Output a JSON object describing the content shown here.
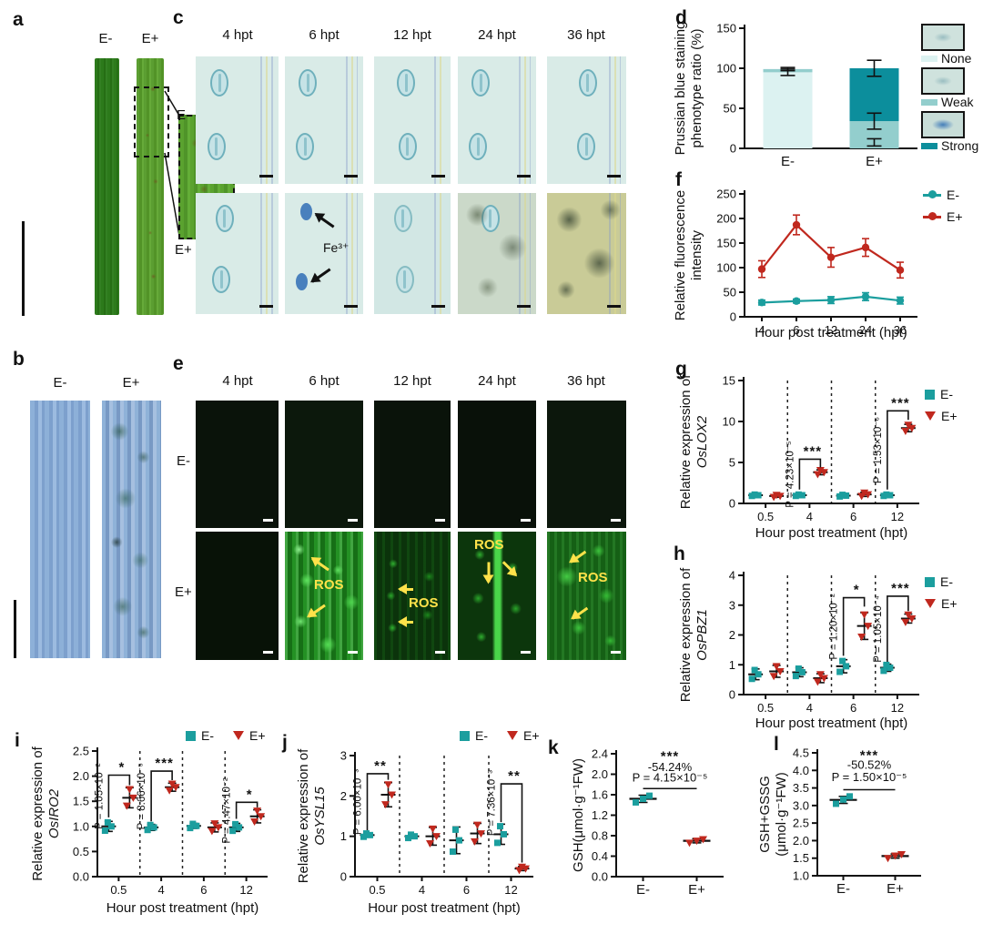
{
  "colors": {
    "teal": "#1b9e9e",
    "red": "#c0281e",
    "none_fill": "#dcf2f1",
    "weak_fill": "#93cecd",
    "strong_fill": "#0c8e9c",
    "ros_yellow": "#ffe24a"
  },
  "panels": {
    "a": {
      "letter": "a",
      "cols": [
        "E-",
        "E+"
      ]
    },
    "b": {
      "letter": "b",
      "cols": [
        "E-",
        "E+"
      ]
    },
    "c": {
      "letter": "c",
      "cols": [
        "4 hpt",
        "6 hpt",
        "12 hpt",
        "24 hpt",
        "36 hpt"
      ],
      "rows": [
        "E-",
        "E+"
      ],
      "fe_label": "Fe³⁺"
    },
    "d": {
      "letter": "d"
    },
    "e": {
      "letter": "e",
      "cols": [
        "4 hpt",
        "6 hpt",
        "12 hpt",
        "24 hpt",
        "36 hpt"
      ],
      "rows": [
        "E-",
        "E+"
      ],
      "ros_label": "ROS"
    },
    "f": {
      "letter": "f"
    },
    "g": {
      "letter": "g"
    },
    "h": {
      "letter": "h"
    },
    "i": {
      "letter": "i"
    },
    "j": {
      "letter": "j"
    },
    "k": {
      "letter": "k"
    },
    "l": {
      "letter": "l"
    }
  },
  "chart_data": [
    {
      "id": "d",
      "type": "bar-stacked",
      "ylabel": [
        "Prussian blue staining",
        "phenotype ratio (%)"
      ],
      "categories": [
        "E-",
        "E+"
      ],
      "ylim": [
        0,
        150
      ],
      "yticks": [
        "0",
        "50",
        "100",
        "150"
      ],
      "series": [
        {
          "name": "None",
          "color": "#dcf2f1",
          "values": [
            95,
            0
          ]
        },
        {
          "name": "Weak",
          "color": "#93cecd",
          "values": [
            4,
            34
          ]
        },
        {
          "name": "Strong",
          "color": "#0c8e9c",
          "values": [
            0,
            66
          ]
        }
      ],
      "error_bars": [
        {
          "cat": 0,
          "lo": 91,
          "hi": 99
        },
        {
          "cat": 0,
          "lo": 97,
          "hi": 101
        },
        {
          "cat": 1,
          "lo": 3,
          "hi": 12
        },
        {
          "cat": 1,
          "lo": 24,
          "hi": 44
        },
        {
          "cat": 1,
          "lo": 90,
          "hi": 110
        }
      ]
    },
    {
      "id": "f",
      "type": "line",
      "ylabel": [
        "Relative fluorescence",
        "intensity"
      ],
      "xlabel": "Hour post treatment (hpt)",
      "categories": [
        "4",
        "6",
        "12",
        "24",
        "36"
      ],
      "ylim": [
        0,
        250
      ],
      "yticks": [
        "0",
        "50",
        "100",
        "150",
        "200",
        "250"
      ],
      "series": [
        {
          "name": "E-",
          "color": "#1b9e9e",
          "values": [
            29,
            32,
            34,
            41,
            33
          ],
          "errors": [
            5,
            4,
            7,
            8,
            7
          ]
        },
        {
          "name": "E+",
          "color": "#c0281e",
          "values": [
            97,
            187,
            121,
            141,
            95
          ],
          "errors": [
            17,
            20,
            20,
            18,
            16
          ]
        }
      ]
    },
    {
      "id": "g",
      "type": "scatter-groups",
      "ylabel": [
        "Relative expression of",
        "OsLOX2"
      ],
      "ylabel_italic": 1,
      "xlabel": "Hour post treatment (hpt)",
      "categories": [
        "0.5",
        "4",
        "6",
        "12"
      ],
      "ylim": [
        0,
        15
      ],
      "yticks": [
        "0",
        "5",
        "10",
        "15"
      ],
      "series": [
        {
          "name": "E-",
          "color": "#1b9e9e",
          "marker": "square",
          "values": [
            1.0,
            1.0,
            0.95,
            1.0
          ],
          "errors": [
            0.1,
            0.1,
            0.12,
            0.1
          ]
        },
        {
          "name": "E+",
          "color": "#c0281e",
          "marker": "triangle",
          "values": [
            0.9,
            3.8,
            1.1,
            9.2
          ],
          "errors": [
            0.15,
            0.3,
            0.25,
            0.45
          ]
        }
      ],
      "significance": [
        {
          "group": 1,
          "stars": "***",
          "p": "P = 4.23×10⁻⁵",
          "y_start": 1.7,
          "y_top": 5.4,
          "y_drop": 4.4
        },
        {
          "group": 3,
          "stars": "***",
          "p": "P = 1.53×10⁻⁶",
          "y_start": 1.7,
          "y_top": 11.3,
          "y_drop": 10.2
        }
      ]
    },
    {
      "id": "h",
      "type": "scatter-groups",
      "ylabel": [
        "Relative expression of",
        "OsPBZ1"
      ],
      "ylabel_italic": 1,
      "xlabel": "Hour post treatment (hpt)",
      "categories": [
        "0.5",
        "4",
        "6",
        "12"
      ],
      "ylim": [
        0,
        4
      ],
      "yticks": [
        "0",
        "1",
        "2",
        "3",
        "4"
      ],
      "series": [
        {
          "name": "E-",
          "color": "#1b9e9e",
          "marker": "square",
          "values": [
            0.68,
            0.75,
            0.95,
            0.9
          ],
          "errors": [
            0.18,
            0.15,
            0.22,
            0.12
          ]
        },
        {
          "name": "E+",
          "color": "#c0281e",
          "marker": "triangle",
          "values": [
            0.78,
            0.55,
            2.3,
            2.55
          ],
          "errors": [
            0.2,
            0.15,
            0.45,
            0.15
          ]
        }
      ],
      "significance": [
        {
          "group": 2,
          "stars": "*",
          "p": "P = 1.20×10⁻²",
          "y_start": 1.3,
          "y_top": 3.25,
          "y_drop": 2.95
        },
        {
          "group": 3,
          "stars": "***",
          "p": "P = 1.05×10⁻⁴",
          "y_start": 1.1,
          "y_top": 3.3,
          "y_drop": 2.8
        }
      ]
    },
    {
      "id": "i",
      "type": "scatter-groups",
      "ylabel": [
        "Relative expression of",
        "OsIRO2"
      ],
      "ylabel_italic": 1,
      "xlabel": "Hour post treatment (hpt)",
      "categories": [
        "0.5",
        "4",
        "6",
        "12"
      ],
      "ylim": [
        0,
        2.5
      ],
      "yticks": [
        "0.0",
        "0.5",
        "1.0",
        "1.5",
        "2.0",
        "2.5"
      ],
      "series": [
        {
          "name": "E-",
          "color": "#1b9e9e",
          "marker": "square",
          "values": [
            1.0,
            0.98,
            1.01,
            0.98
          ],
          "errors": [
            0.1,
            0.06,
            0.05,
            0.08
          ]
        },
        {
          "name": "E+",
          "color": "#c0281e",
          "marker": "triangle",
          "values": [
            1.57,
            1.78,
            0.98,
            1.2
          ],
          "errors": [
            0.2,
            0.08,
            0.09,
            0.13
          ]
        }
      ],
      "significance": [
        {
          "group": 0,
          "stars": "*",
          "p": "P = 1.05×10⁻²",
          "y_start": 1.18,
          "y_top": 2.02,
          "y_drop": 1.82
        },
        {
          "group": 1,
          "stars": "***",
          "p": "P = 8.66×10⁻⁵",
          "y_start": 1.1,
          "y_top": 2.1,
          "y_drop": 1.92
        },
        {
          "group": 3,
          "stars": "*",
          "p": "P = 4.47×10⁻²",
          "y_start": 1.15,
          "y_top": 1.48,
          "y_drop": 1.38
        }
      ]
    },
    {
      "id": "j",
      "type": "scatter-groups",
      "ylabel": [
        "Relative expression of",
        "OsYSL15"
      ],
      "ylabel_italic": 1,
      "xlabel": "Hour post treatment (hpt)",
      "categories": [
        "0.5",
        "4",
        "6",
        "12"
      ],
      "ylim": [
        0,
        3
      ],
      "yticks": [
        "0",
        "1",
        "2",
        "3"
      ],
      "series": [
        {
          "name": "E-",
          "color": "#1b9e9e",
          "marker": "square",
          "values": [
            1.03,
            1.0,
            0.9,
            1.05
          ],
          "errors": [
            0.05,
            0.05,
            0.33,
            0.25
          ]
        },
        {
          "name": "E+",
          "color": "#c0281e",
          "marker": "triangle",
          "values": [
            2.03,
            1.0,
            1.07,
            0.2
          ],
          "errors": [
            0.3,
            0.22,
            0.25,
            0.05
          ]
        }
      ],
      "significance": [
        {
          "group": 0,
          "stars": "**",
          "p": "P = 6.00×10⁻³",
          "y_start": 1.15,
          "y_top": 2.55,
          "y_drop": 2.4
        },
        {
          "group": 3,
          "stars": "**",
          "p": "P = 7.36×10⁻³",
          "y_start": 1.35,
          "y_top": 2.3,
          "y_drop": 0.35
        }
      ]
    },
    {
      "id": "k",
      "type": "scatter-two",
      "ylabel": [
        "GSH(μmol·g⁻¹FW)"
      ],
      "categories": [
        "E-",
        "E+"
      ],
      "ylim": [
        0,
        2.4
      ],
      "yticks": [
        "0.0",
        "0.4",
        "0.8",
        "1.2",
        "1.6",
        "2.0",
        "2.4"
      ],
      "series": [
        {
          "name": "E-",
          "color": "#1b9e9e",
          "marker": "square",
          "points": [
            1.45,
            1.52,
            1.58
          ],
          "mean": 1.52,
          "err": 0.07
        },
        {
          "name": "E+",
          "color": "#c0281e",
          "marker": "triangle",
          "points": [
            0.66,
            0.7,
            0.73
          ],
          "mean": 0.7,
          "err": 0.04
        }
      ],
      "annotation": {
        "stars": "***",
        "percent": "-54.24%",
        "p": "P = 4.15×10⁻⁵",
        "line_y": 1.72,
        "stars_y": 2.27,
        "pct_y": 2.06,
        "p_y": 1.86
      }
    },
    {
      "id": "l",
      "type": "scatter-two",
      "ylabel": [
        "GSH+GSSG",
        "(μmol·g⁻¹FW)"
      ],
      "categories": [
        "E-",
        "E+"
      ],
      "ylim": [
        1.0,
        4.5
      ],
      "yticks": [
        "1.0",
        "1.5",
        "2.0",
        "2.5",
        "3.0",
        "3.5",
        "4.0",
        "4.5"
      ],
      "series": [
        {
          "name": "E-",
          "color": "#1b9e9e",
          "marker": "square",
          "points": [
            3.05,
            3.17,
            3.26
          ],
          "mean": 3.16,
          "err": 0.1
        },
        {
          "name": "E+",
          "color": "#c0281e",
          "marker": "triangle",
          "points": [
            1.5,
            1.57,
            1.61
          ],
          "mean": 1.56,
          "err": 0.06
        }
      ],
      "annotation": {
        "stars": "***",
        "percent": "-50.52%",
        "p": "P = 1.50×10⁻⁵",
        "line_y": 3.45,
        "stars_y": 4.3,
        "pct_y": 4.05,
        "p_y": 3.7
      }
    }
  ]
}
